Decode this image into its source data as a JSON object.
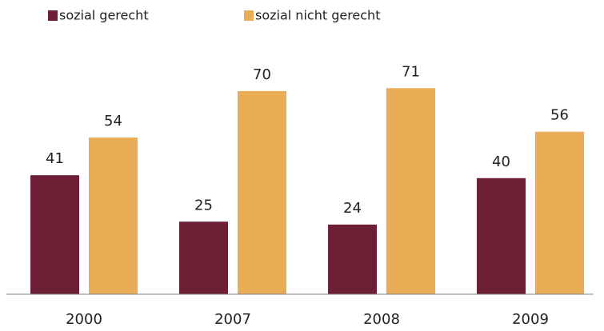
{
  "chart_data": {
    "type": "bar",
    "categories": [
      "2000",
      "2007",
      "2008",
      "2009"
    ],
    "series": [
      {
        "name": "sozial gerecht",
        "color": "#6d1f35",
        "values": [
          41,
          25,
          24,
          40
        ]
      },
      {
        "name": "sozial nicht gerecht",
        "color": "#e8ad55",
        "values": [
          54,
          70,
          71,
          56
        ]
      }
    ],
    "ylim": [
      0,
      100
    ]
  }
}
